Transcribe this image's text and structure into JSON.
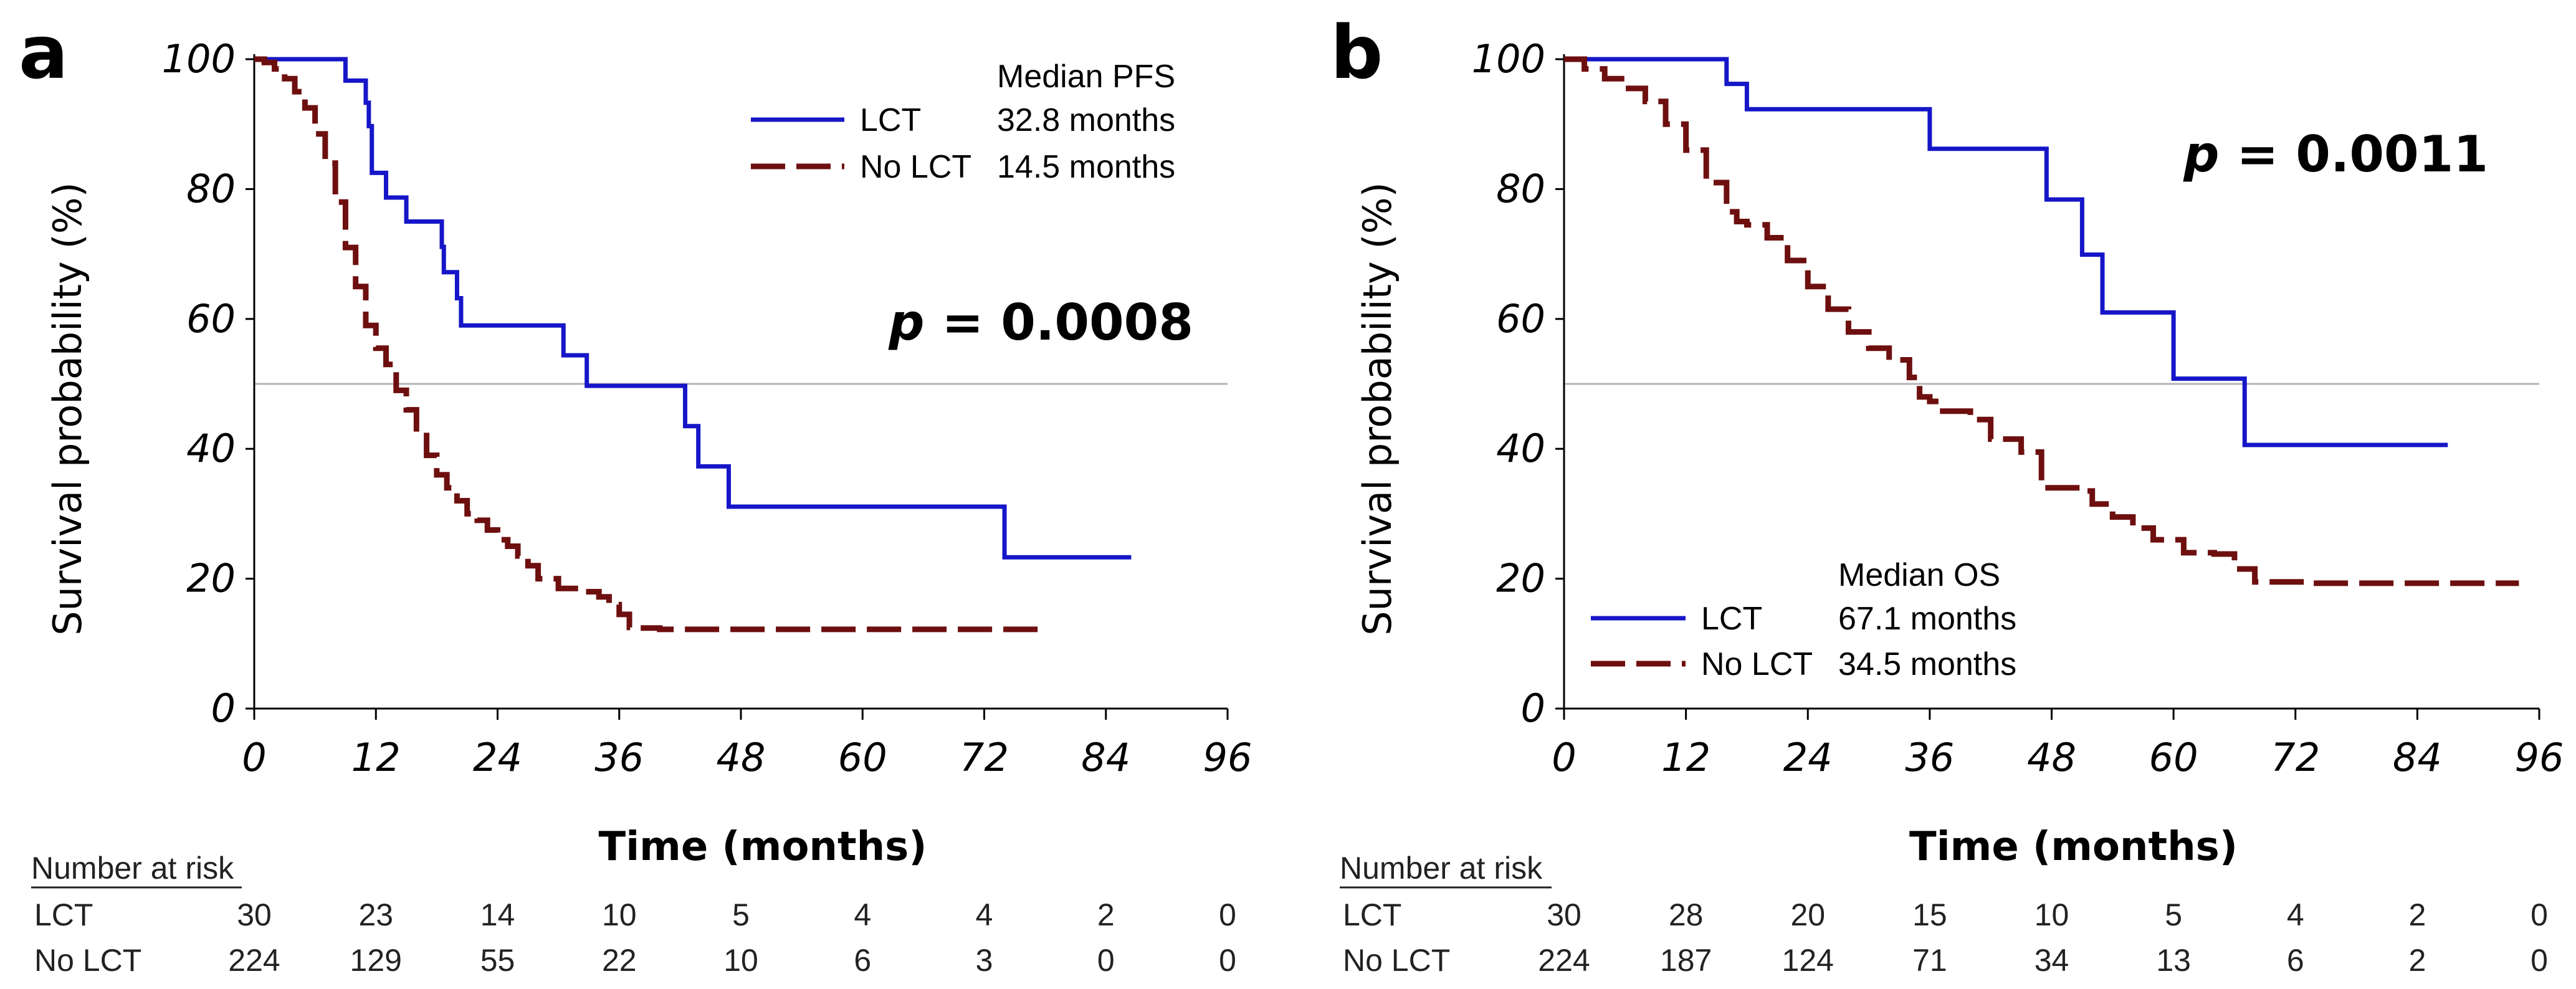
{
  "chart_data": [
    {
      "panel": "a",
      "type": "line",
      "subtype": "kaplan-meier",
      "xlabel": "Time (months)",
      "ylabel": "Survival probability (%)",
      "xlim": [
        0,
        96
      ],
      "ylim": [
        0,
        100
      ],
      "x_ticks": [
        0,
        12,
        24,
        36,
        48,
        60,
        72,
        84,
        96
      ],
      "y_ticks": [
        0,
        20,
        40,
        60,
        80,
        100
      ],
      "x_tick_labels": [
        "0",
        "12",
        "24",
        "36",
        "48",
        "60",
        "72",
        "84",
        "96"
      ],
      "y_tick_labels": [
        "0",
        "20",
        "40",
        "60",
        "80",
        "100"
      ],
      "reference_line_y": 50,
      "legend": {
        "header": "Median PFS",
        "entries": [
          {
            "label": "LCT",
            "median": "32.8 months"
          },
          {
            "label": "No LCT",
            "median": "14.5 months"
          }
        ]
      },
      "p_value": {
        "p": "p",
        "rest": " = 0.0008"
      },
      "series": [
        {
          "name": "LCT",
          "color": "#1616c8",
          "dash": "solid",
          "steps": [
            [
              0,
              100
            ],
            [
              9,
              100
            ],
            [
              9,
              96.7
            ],
            [
              11,
              96.7
            ],
            [
              11,
              93.3
            ],
            [
              11.3,
              93.3
            ],
            [
              11.3,
              89.7
            ],
            [
              11.6,
              89.7
            ],
            [
              11.6,
              82.5
            ],
            [
              13,
              82.5
            ],
            [
              13,
              78.7
            ],
            [
              15,
              78.7
            ],
            [
              15,
              75
            ],
            [
              18.5,
              75
            ],
            [
              18.5,
              71.1
            ],
            [
              18.7,
              71.1
            ],
            [
              18.7,
              67.2
            ],
            [
              20,
              67.2
            ],
            [
              20,
              63.2
            ],
            [
              20.4,
              63.2
            ],
            [
              20.4,
              59
            ],
            [
              30.5,
              59
            ],
            [
              30.5,
              54.4
            ],
            [
              32.8,
              54.4
            ],
            [
              32.8,
              49.7
            ],
            [
              42.5,
              49.7
            ],
            [
              42.5,
              43.5
            ],
            [
              43.8,
              43.5
            ],
            [
              43.8,
              37.3
            ],
            [
              46.8,
              37.3
            ],
            [
              46.8,
              31.1
            ],
            [
              74,
              31.1
            ],
            [
              74,
              23.3
            ],
            [
              86.5,
              23.3
            ]
          ]
        },
        {
          "name": "No LCT",
          "color": "#6e0f0f",
          "dash": "dashed",
          "steps": [
            [
              0,
              100
            ],
            [
              1,
              99.5
            ],
            [
              2,
              98.5
            ],
            [
              3,
              97
            ],
            [
              4,
              95
            ],
            [
              5,
              92.5
            ],
            [
              6,
              88.5
            ],
            [
              7,
              84
            ],
            [
              8,
              78
            ],
            [
              9,
              71
            ],
            [
              10,
              65
            ],
            [
              11,
              59
            ],
            [
              12,
              55.5
            ],
            [
              13,
              53
            ],
            [
              14,
              49
            ],
            [
              15,
              46
            ],
            [
              16,
              42.5
            ],
            [
              17,
              39
            ],
            [
              18,
              36
            ],
            [
              19,
              34
            ],
            [
              20,
              32
            ],
            [
              21,
              30
            ],
            [
              22,
              29
            ],
            [
              23,
              27.5
            ],
            [
              24,
              26
            ],
            [
              25,
              25
            ],
            [
              26,
              23.5
            ],
            [
              27,
              22
            ],
            [
              28,
              20
            ],
            [
              29,
              20
            ],
            [
              30,
              18.5
            ],
            [
              32,
              18
            ],
            [
              34,
              17.2
            ],
            [
              35,
              16
            ],
            [
              36,
              14.5
            ],
            [
              37,
              12.5
            ],
            [
              38,
              12.4
            ],
            [
              40,
              12.2
            ],
            [
              42,
              12.2
            ],
            [
              78,
              12.2
            ]
          ]
        }
      ],
      "risk_table": {
        "title": "Number at risk",
        "times": [
          0,
          12,
          24,
          36,
          48,
          60,
          72,
          84,
          96
        ],
        "rows": [
          {
            "label": "LCT",
            "values": [
              "30",
              "23",
              "14",
              "10",
              "5",
              "4",
              "4",
              "2",
              "0"
            ]
          },
          {
            "label": "No LCT",
            "values": [
              "224",
              "129",
              "55",
              "22",
              "10",
              "6",
              "3",
              "0",
              "0"
            ]
          }
        ]
      }
    },
    {
      "panel": "b",
      "type": "line",
      "subtype": "kaplan-meier",
      "xlabel": "Time (months)",
      "ylabel": "Survival probability (%)",
      "xlim": [
        0,
        96
      ],
      "ylim": [
        0,
        100
      ],
      "x_ticks": [
        0,
        12,
        24,
        36,
        48,
        60,
        72,
        84,
        96
      ],
      "y_ticks": [
        0,
        20,
        40,
        60,
        80,
        100
      ],
      "x_tick_labels": [
        "0",
        "12",
        "24",
        "36",
        "48",
        "60",
        "72",
        "84",
        "96"
      ],
      "y_tick_labels": [
        "0",
        "20",
        "40",
        "60",
        "80",
        "100"
      ],
      "reference_line_y": 50,
      "legend": {
        "header": "Median OS",
        "entries": [
          {
            "label": "LCT",
            "median": "67.1 months"
          },
          {
            "label": "No LCT",
            "median": "34.5 months"
          }
        ]
      },
      "p_value": {
        "p": "p",
        "rest": " = 0.0011"
      },
      "series": [
        {
          "name": "LCT",
          "color": "#1616c8",
          "dash": "solid",
          "steps": [
            [
              0,
              100
            ],
            [
              16,
              100
            ],
            [
              16,
              96.2
            ],
            [
              18,
              96.2
            ],
            [
              18,
              92.3
            ],
            [
              36,
              92.3
            ],
            [
              36,
              86.2
            ],
            [
              47.5,
              86.2
            ],
            [
              47.5,
              78.4
            ],
            [
              51,
              78.4
            ],
            [
              51,
              69.9
            ],
            [
              53,
              69.9
            ],
            [
              53,
              61
            ],
            [
              60,
              61
            ],
            [
              60,
              50.8
            ],
            [
              67,
              50.8
            ],
            [
              67,
              40.6
            ],
            [
              87,
              40.6
            ]
          ]
        },
        {
          "name": "No LCT",
          "color": "#6e0f0f",
          "dash": "dashed",
          "steps": [
            [
              0,
              100
            ],
            [
              2,
              98.5
            ],
            [
              4,
              97
            ],
            [
              6,
              95.5
            ],
            [
              8,
              93.5
            ],
            [
              10,
              90
            ],
            [
              12,
              86
            ],
            [
              14,
              81
            ],
            [
              16,
              76.5
            ],
            [
              17,
              75
            ],
            [
              18,
              74.5
            ],
            [
              20,
              72.5
            ],
            [
              22,
              69
            ],
            [
              24,
              65
            ],
            [
              26,
              61.5
            ],
            [
              28,
              58
            ],
            [
              30,
              55.5
            ],
            [
              32,
              53.7
            ],
            [
              34,
              51
            ],
            [
              35,
              48
            ],
            [
              36,
              47.3
            ],
            [
              37,
              45.8
            ],
            [
              40,
              44.5
            ],
            [
              42,
              41.5
            ],
            [
              45,
              39.5
            ],
            [
              47,
              34
            ],
            [
              51,
              33.5
            ],
            [
              52,
              31.5
            ],
            [
              54,
              29.5
            ],
            [
              56,
              27.8
            ],
            [
              58,
              26
            ],
            [
              61,
              24
            ],
            [
              64,
              23.8
            ],
            [
              66,
              21.5
            ],
            [
              68,
              19.5
            ],
            [
              73,
              19.3
            ],
            [
              94,
              19.3
            ]
          ]
        }
      ],
      "risk_table": {
        "title": "Number at risk",
        "times": [
          0,
          12,
          24,
          36,
          48,
          60,
          72,
          84,
          96
        ],
        "rows": [
          {
            "label": "LCT",
            "values": [
              "30",
              "28",
              "20",
              "15",
              "10",
              "5",
              "4",
              "2",
              "0"
            ]
          },
          {
            "label": "No LCT",
            "values": [
              "224",
              "187",
              "124",
              "71",
              "34",
              "13",
              "6",
              "2",
              "0"
            ]
          }
        ]
      }
    }
  ],
  "panel_labels": [
    "a",
    "b"
  ]
}
